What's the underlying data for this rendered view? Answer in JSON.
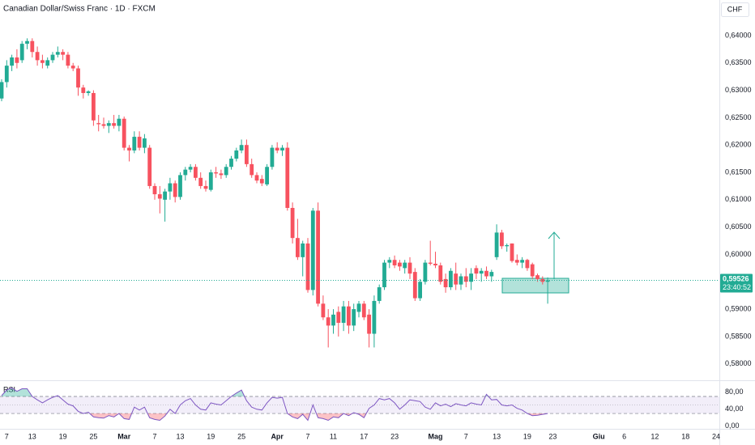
{
  "chart_data": {
    "type": "candlestick",
    "title": "Canadian Dollar/Swiss Franc · 1D · FXCM",
    "currency": "CHF",
    "indicator": "RSI",
    "up_color": "#22ab94",
    "down_color": "#f7525f",
    "grid": false,
    "categories": [
      null,
      "7",
      null,
      null,
      null,
      null,
      "13",
      null,
      null,
      null,
      null,
      null,
      "19",
      null,
      null,
      null,
      null,
      null,
      "25",
      null,
      null,
      null,
      null,
      null,
      "Mar",
      null,
      null,
      null,
      null,
      null,
      "7",
      null,
      null,
      null,
      null,
      "13",
      null,
      null,
      null,
      null,
      null,
      "19",
      null,
      null,
      null,
      null,
      null,
      "25",
      null,
      null,
      null,
      null,
      null,
      null,
      "Apr",
      null,
      null,
      null,
      null,
      null,
      "7",
      null,
      null,
      null,
      null,
      "11",
      null,
      null,
      null,
      null,
      null,
      "17",
      null,
      null,
      null,
      null,
      null,
      "23",
      null,
      null,
      null,
      null,
      null,
      null,
      null,
      "Mag",
      null,
      null,
      null,
      null,
      null,
      "7",
      null,
      null,
      null,
      null,
      null,
      "13",
      null,
      null,
      null,
      null,
      null,
      "19",
      null,
      null,
      null,
      null,
      "23",
      null,
      null,
      null,
      null,
      null,
      null,
      null,
      null,
      "Giu",
      null,
      null,
      null,
      null,
      "6",
      null,
      null,
      null,
      null,
      null,
      "12",
      null,
      null,
      null,
      null,
      null,
      "18",
      null,
      null,
      null,
      null,
      null,
      "24"
    ],
    "ohlc": [
      [
        0.6285,
        0.632,
        0.628,
        0.6315
      ],
      [
        0.6315,
        0.6355,
        0.6305,
        0.6345
      ],
      [
        0.6345,
        0.6365,
        0.6335,
        0.636
      ],
      [
        0.636,
        0.6375,
        0.634,
        0.635
      ],
      [
        0.6355,
        0.639,
        0.635,
        0.6385
      ],
      [
        0.6385,
        0.6395,
        0.6375,
        0.639
      ],
      [
        0.639,
        0.6395,
        0.636,
        0.637
      ],
      [
        0.637,
        0.638,
        0.6345,
        0.6355
      ],
      [
        0.6355,
        0.6365,
        0.634,
        0.635
      ],
      [
        0.6345,
        0.636,
        0.634,
        0.6355
      ],
      [
        0.6355,
        0.637,
        0.635,
        0.6365
      ],
      [
        0.6365,
        0.638,
        0.636,
        0.637
      ],
      [
        0.637,
        0.6375,
        0.6355,
        0.6365
      ],
      [
        0.6365,
        0.637,
        0.634,
        0.6345
      ],
      [
        0.6345,
        0.635,
        0.6335,
        0.634
      ],
      [
        0.634,
        0.6345,
        0.629,
        0.6305
      ],
      [
        0.6305,
        0.631,
        0.6285,
        0.6295
      ],
      [
        0.6295,
        0.63,
        0.629,
        0.6298
      ],
      [
        0.6295,
        0.63,
        0.6235,
        0.6245
      ],
      [
        0.624,
        0.6255,
        0.6225,
        0.6238
      ],
      [
        0.6238,
        0.625,
        0.623,
        0.6235
      ],
      [
        0.6235,
        0.6245,
        0.6222,
        0.624
      ],
      [
        0.624,
        0.6255,
        0.623,
        0.6235
      ],
      [
        0.6235,
        0.6255,
        0.6225,
        0.6248
      ],
      [
        0.6248,
        0.6252,
        0.619,
        0.6195
      ],
      [
        0.6195,
        0.62,
        0.617,
        0.619
      ],
      [
        0.619,
        0.6225,
        0.6185,
        0.6215
      ],
      [
        0.6215,
        0.6225,
        0.619,
        0.6195
      ],
      [
        0.6195,
        0.622,
        0.6185,
        0.6212
      ],
      [
        0.6195,
        0.62,
        0.612,
        0.6125
      ],
      [
        0.6125,
        0.613,
        0.61,
        0.611
      ],
      [
        0.611,
        0.6125,
        0.6075,
        0.6102
      ],
      [
        0.61,
        0.612,
        0.606,
        0.6115
      ],
      [
        0.6115,
        0.614,
        0.61,
        0.613
      ],
      [
        0.613,
        0.6135,
        0.6095,
        0.6105
      ],
      [
        0.6105,
        0.615,
        0.61,
        0.6145
      ],
      [
        0.6145,
        0.616,
        0.6135,
        0.6155
      ],
      [
        0.6155,
        0.6165,
        0.615,
        0.616
      ],
      [
        0.616,
        0.6165,
        0.6135,
        0.614
      ],
      [
        0.614,
        0.615,
        0.612,
        0.6125
      ],
      [
        0.6125,
        0.6135,
        0.6115,
        0.612
      ],
      [
        0.6118,
        0.6155,
        0.6115,
        0.615
      ],
      [
        0.615,
        0.616,
        0.614,
        0.6148
      ],
      [
        0.6148,
        0.6155,
        0.6138,
        0.6145
      ],
      [
        0.6145,
        0.6165,
        0.614,
        0.616
      ],
      [
        0.616,
        0.618,
        0.6155,
        0.6175
      ],
      [
        0.6175,
        0.6195,
        0.617,
        0.619
      ],
      [
        0.619,
        0.621,
        0.6185,
        0.62
      ],
      [
        0.62,
        0.621,
        0.616,
        0.6165
      ],
      [
        0.6165,
        0.6175,
        0.614,
        0.6145
      ],
      [
        0.6145,
        0.615,
        0.613,
        0.6135
      ],
      [
        0.6138,
        0.6145,
        0.6125,
        0.613
      ],
      [
        0.6128,
        0.6165,
        0.6125,
        0.616
      ],
      [
        0.616,
        0.62,
        0.6155,
        0.6195
      ],
      [
        0.6195,
        0.6205,
        0.6185,
        0.619
      ],
      [
        0.619,
        0.62,
        0.618,
        0.6195
      ],
      [
        0.6195,
        0.6205,
        0.608,
        0.6085
      ],
      [
        0.6085,
        0.6095,
        0.602,
        0.603
      ],
      [
        0.603,
        0.6065,
        0.599,
        0.5995
      ],
      [
        0.5995,
        0.6025,
        0.596,
        0.602
      ],
      [
        0.602,
        0.603,
        0.593,
        0.5935
      ],
      [
        0.5935,
        0.6085,
        0.5925,
        0.608
      ],
      [
        0.608,
        0.6095,
        0.5905,
        0.591
      ],
      [
        0.591,
        0.5925,
        0.588,
        0.5885
      ],
      [
        0.5885,
        0.59,
        0.583,
        0.587
      ],
      [
        0.587,
        0.59,
        0.5855,
        0.589
      ],
      [
        0.5895,
        0.5905,
        0.585,
        0.5875
      ],
      [
        0.5875,
        0.5915,
        0.586,
        0.5905
      ],
      [
        0.5905,
        0.5915,
        0.5855,
        0.587
      ],
      [
        0.587,
        0.591,
        0.586,
        0.59
      ],
      [
        0.5895,
        0.5915,
        0.5885,
        0.591
      ],
      [
        0.591,
        0.5915,
        0.588,
        0.5885
      ],
      [
        0.589,
        0.59,
        0.583,
        0.5855
      ],
      [
        0.5855,
        0.5925,
        0.583,
        0.5915
      ],
      [
        0.5915,
        0.5945,
        0.591,
        0.594
      ],
      [
        0.594,
        0.599,
        0.5935,
        0.5985
      ],
      [
        0.5985,
        0.5995,
        0.5975,
        0.599
      ],
      [
        0.599,
        0.5998,
        0.5975,
        0.598
      ],
      [
        0.5985,
        0.599,
        0.597,
        0.5978
      ],
      [
        0.5975,
        0.599,
        0.5965,
        0.5985
      ],
      [
        0.5985,
        0.5995,
        0.5955,
        0.5965
      ],
      [
        0.5968,
        0.5975,
        0.5915,
        0.592
      ],
      [
        0.592,
        0.5955,
        0.5915,
        0.595
      ],
      [
        0.595,
        0.599,
        0.5945,
        0.5985
      ],
      [
        0.5985,
        0.6025,
        0.598,
        0.5983
      ],
      [
        0.5983,
        0.6005,
        0.5975,
        0.598
      ],
      [
        0.598,
        0.5985,
        0.5945,
        0.595
      ],
      [
        0.5955,
        0.5965,
        0.593,
        0.594
      ],
      [
        0.594,
        0.5975,
        0.5935,
        0.597
      ],
      [
        0.5965,
        0.5985,
        0.5935,
        0.5945
      ],
      [
        0.5945,
        0.5965,
        0.5935,
        0.596
      ],
      [
        0.596,
        0.5975,
        0.594,
        0.595
      ],
      [
        0.595,
        0.5975,
        0.5935,
        0.5965
      ],
      [
        0.5975,
        0.598,
        0.5955,
        0.5965
      ],
      [
        0.5965,
        0.5975,
        0.595,
        0.597
      ],
      [
        0.597,
        0.5978,
        0.5955,
        0.596
      ],
      [
        0.596,
        0.5972,
        0.595,
        0.5968
      ],
      [
        0.5995,
        0.6055,
        0.599,
        0.604
      ],
      [
        0.604,
        0.6045,
        0.601,
        0.6015
      ],
      [
        0.6015,
        0.602,
        0.6005,
        0.6017
      ],
      [
        0.602,
        0.602,
        0.5985,
        0.5988
      ],
      [
        0.599,
        0.6,
        0.598,
        0.5985
      ],
      [
        0.5985,
        0.5995,
        0.5975,
        0.599
      ],
      [
        0.599,
        0.5992,
        0.597,
        0.5975
      ],
      [
        0.5982,
        0.5985,
        0.5955,
        0.596
      ],
      [
        0.5962,
        0.5965,
        0.595,
        0.5955
      ],
      [
        0.5955,
        0.596,
        0.5945,
        0.595
      ],
      [
        0.595,
        0.5958,
        0.591,
        0.59526
      ],
      null,
      null,
      null,
      null,
      null,
      null,
      null,
      null,
      null,
      null,
      null,
      null,
      null,
      null,
      null,
      null,
      null,
      null,
      null,
      null,
      null,
      null,
      null,
      null,
      null,
      null,
      null,
      null,
      null,
      null,
      null,
      null,
      null
    ],
    "rsi": [
      72,
      85,
      90,
      82,
      88,
      88,
      70,
      62,
      55,
      62,
      68,
      72,
      62,
      52,
      48,
      35,
      30,
      33,
      22,
      20,
      19,
      25,
      22,
      30,
      18,
      16,
      45,
      38,
      45,
      20,
      16,
      14,
      24,
      40,
      30,
      50,
      60,
      65,
      50,
      40,
      38,
      55,
      52,
      50,
      60,
      70,
      78,
      85,
      60,
      45,
      40,
      38,
      55,
      68,
      66,
      68,
      30,
      22,
      18,
      28,
      14,
      50,
      20,
      18,
      14,
      22,
      20,
      30,
      25,
      32,
      28,
      20,
      42,
      50,
      65,
      62,
      65,
      55,
      40,
      50,
      62,
      60,
      58,
      45,
      40,
      55,
      48,
      52,
      46,
      53,
      50,
      48,
      55,
      52,
      50,
      75,
      62,
      63,
      50,
      48,
      50,
      42,
      38,
      30,
      25,
      26,
      28,
      30,
      null,
      null,
      null,
      null,
      null,
      null,
      null,
      null,
      null,
      null,
      null,
      null,
      null,
      null,
      null,
      null,
      null,
      null,
      null,
      null,
      null,
      null,
      null,
      null,
      null,
      null,
      null,
      null,
      null,
      null,
      null,
      null,
      null
    ],
    "rsi_color": "#7e57c2",
    "rsi_bands": [
      30,
      70
    ],
    "rsi_mid": 50,
    "ylim": [
      0.577,
      0.6465
    ],
    "yticks": [
      {
        "value": 0.64,
        "label": "0,64000"
      },
      {
        "value": 0.635,
        "label": "0,63500"
      },
      {
        "value": 0.63,
        "label": "0,63000"
      },
      {
        "value": 0.625,
        "label": "0,62500"
      },
      {
        "value": 0.62,
        "label": "0,62000"
      },
      {
        "value": 0.615,
        "label": "0,61500"
      },
      {
        "value": 0.61,
        "label": "0,61000"
      },
      {
        "value": 0.605,
        "label": "0,60500"
      },
      {
        "value": 0.6,
        "label": "0,60000"
      },
      {
        "value": 0.595,
        "label": "0,59500"
      },
      {
        "value": 0.59,
        "label": "0,59000"
      },
      {
        "value": 0.585,
        "label": "0,58500"
      },
      {
        "value": 0.58,
        "label": "0,58000"
      }
    ],
    "rsi_ylim": [
      -6,
      108
    ],
    "rsi_yticks": [
      {
        "value": 80,
        "label": "80,00"
      },
      {
        "value": 40,
        "label": "40,00"
      },
      {
        "value": 0,
        "label": "0,00"
      }
    ],
    "last_price": {
      "value": 0.59526,
      "label": "0,59526"
    },
    "countdown": "23:40:52"
  }
}
